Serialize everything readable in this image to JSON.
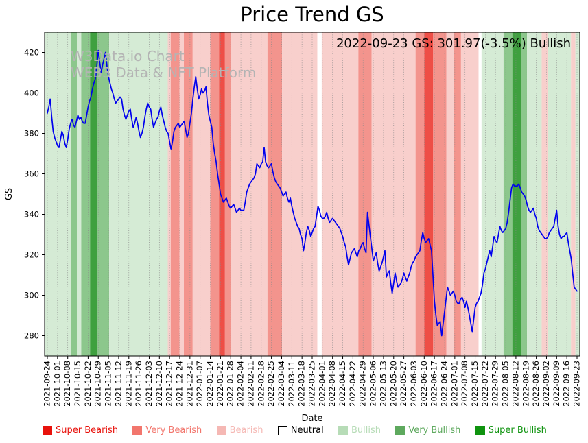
{
  "title": "Price Trend GS",
  "annotation": "2022-09-23 GS: 301.97(-3.5%) Bullish",
  "watermark": {
    "line1": "W3Data.io Chart",
    "line2": "WEB3 Data & NFT Platform"
  },
  "chart_data": {
    "type": "line",
    "title": "Price Trend GS",
    "xlabel": "Date",
    "ylabel": "GS",
    "ylim": [
      270,
      430
    ],
    "yticks": [
      280,
      300,
      320,
      340,
      360,
      380,
      400,
      420
    ],
    "grid": "vertical-dotted",
    "legend_position": "bottom",
    "x_range": [
      "2021-09-24",
      "2022-09-23"
    ],
    "frequency": "daily",
    "x_tick_labels": [
      "2021-09-24",
      "2021-10-01",
      "2021-10-08",
      "2021-10-15",
      "2021-10-22",
      "2021-10-29",
      "2021-11-05",
      "2021-11-12",
      "2021-11-19",
      "2021-11-26",
      "2021-12-03",
      "2021-12-10",
      "2021-12-17",
      "2021-12-24",
      "2021-12-31",
      "2022-01-07",
      "2022-01-14",
      "2022-01-21",
      "2022-01-28",
      "2022-02-04",
      "2022-02-11",
      "2022-02-18",
      "2022-02-25",
      "2022-03-04",
      "2022-03-11",
      "2022-03-18",
      "2022-03-25",
      "2022-04-01",
      "2022-04-08",
      "2022-04-15",
      "2022-04-22",
      "2022-04-29",
      "2022-05-06",
      "2022-05-13",
      "2022-05-20",
      "2022-05-27",
      "2022-06-03",
      "2022-06-10",
      "2022-06-17",
      "2022-06-24",
      "2022-07-01",
      "2022-07-08",
      "2022-07-15",
      "2022-07-22",
      "2022-07-29",
      "2022-08-05",
      "2022-08-12",
      "2022-08-19",
      "2022-08-26",
      "2022-09-02",
      "2022-09-09",
      "2022-09-16",
      "2022-09-23"
    ],
    "series": [
      {
        "name": "GS",
        "color": "#0000ee",
        "values": [
          390,
          393,
          397,
          388,
          381,
          378,
          376,
          374,
          373,
          377,
          381,
          379,
          375,
          373,
          377,
          382,
          385,
          387,
          384,
          383,
          386,
          389,
          387,
          388,
          386,
          385,
          385,
          389,
          393,
          396,
          398,
          402,
          405,
          407,
          413,
          421,
          415,
          410,
          414,
          417,
          420,
          413,
          408,
          405,
          402,
          400,
          397,
          395,
          396,
          397,
          398,
          397,
          392,
          389,
          387,
          389,
          391,
          392,
          387,
          383,
          385,
          388,
          385,
          381,
          378,
          380,
          383,
          388,
          392,
          395,
          393,
          392,
          387,
          383,
          385,
          387,
          388,
          391,
          393,
          389,
          386,
          383,
          381,
          380,
          376,
          372,
          376,
          381,
          383,
          384,
          385,
          383,
          384,
          385,
          386,
          382,
          378,
          380,
          385,
          390,
          397,
          403,
          408,
          402,
          397,
          399,
          402,
          400,
          401,
          403,
          395,
          389,
          386,
          383,
          375,
          370,
          366,
          360,
          355,
          350,
          348,
          346,
          347,
          348,
          346,
          344,
          343,
          344,
          345,
          343,
          341,
          342,
          343,
          342,
          342,
          342,
          346,
          351,
          353,
          355,
          356,
          357,
          358,
          360,
          365,
          364,
          363,
          365,
          366,
          373,
          366,
          364,
          363,
          364,
          365,
          361,
          358,
          356,
          355,
          354,
          353,
          351,
          349,
          350,
          351,
          348,
          346,
          348,
          344,
          341,
          338,
          336,
          334,
          333,
          330,
          328,
          322,
          326,
          331,
          334,
          332,
          329,
          331,
          333,
          334,
          339,
          344,
          342,
          339,
          338,
          338,
          339,
          341,
          338,
          336,
          337,
          338,
          337,
          336,
          335,
          334,
          333,
          331,
          329,
          326,
          324,
          319,
          315,
          318,
          321,
          322,
          323,
          321,
          319,
          322,
          323,
          325,
          326,
          323,
          321,
          341,
          335,
          329,
          323,
          317,
          319,
          321,
          316,
          312,
          314,
          316,
          319,
          322,
          309,
          311,
          312,
          306,
          301,
          306,
          311,
          307,
          304,
          305,
          306,
          308,
          311,
          309,
          307,
          309,
          311,
          314,
          316,
          317,
          319,
          320,
          321,
          322,
          327,
          331,
          328,
          326,
          327,
          328,
          325,
          322,
          310,
          297,
          290,
          285,
          286,
          287,
          280,
          286,
          292,
          298,
          304,
          302,
          300,
          301,
          302,
          300,
          297,
          296,
          296,
          298,
          299,
          297,
          294,
          297,
          294,
          290,
          286,
          282,
          288,
          294,
          296,
          297,
          299,
          301,
          305,
          311,
          313,
          316,
          319,
          322,
          319,
          324,
          329,
          327,
          326,
          330,
          334,
          332,
          331,
          332,
          333,
          336,
          341,
          347,
          353,
          355,
          354,
          354,
          354,
          355,
          353,
          351,
          350,
          349,
          347,
          344,
          342,
          341,
          342,
          343,
          340,
          338,
          334,
          332,
          331,
          330,
          329,
          328,
          328,
          329,
          331,
          332,
          333,
          334,
          338,
          342,
          334,
          330,
          328,
          329,
          329,
          330,
          331,
          326,
          322,
          318,
          311,
          304,
          303,
          301.97
        ]
      }
    ],
    "band_colors": {
      "super_bearish": "#ee4e46",
      "very_bearish": "#f3948d",
      "bearish": "#f8cfcc",
      "neutral": "#ffffff",
      "bullish": "#d5ebd5",
      "very_bullish": "#8cc78c",
      "super_bullish": "#3fa03f"
    },
    "sentiment_bands": [
      {
        "class": "bullish",
        "start": 0,
        "end": 17
      },
      {
        "class": "very_bullish",
        "start": 18,
        "end": 21
      },
      {
        "class": "bullish",
        "start": 22,
        "end": 24
      },
      {
        "class": "very_bullish",
        "start": 25,
        "end": 30
      },
      {
        "class": "super_bullish",
        "start": 31,
        "end": 35
      },
      {
        "class": "very_bullish",
        "start": 36,
        "end": 43
      },
      {
        "class": "bullish",
        "start": 44,
        "end": 83
      },
      {
        "class": "bearish",
        "start": 84,
        "end": 85
      },
      {
        "class": "very_bearish",
        "start": 86,
        "end": 91
      },
      {
        "class": "bearish",
        "start": 92,
        "end": 94
      },
      {
        "class": "very_bearish",
        "start": 95,
        "end": 100
      },
      {
        "class": "bearish",
        "start": 101,
        "end": 112
      },
      {
        "class": "very_bearish",
        "start": 113,
        "end": 118
      },
      {
        "class": "super_bearish",
        "start": 119,
        "end": 122
      },
      {
        "class": "very_bearish",
        "start": 123,
        "end": 126
      },
      {
        "class": "bearish",
        "start": 127,
        "end": 151
      },
      {
        "class": "very_bearish",
        "start": 152,
        "end": 161
      },
      {
        "class": "bearish",
        "start": 162,
        "end": 185
      },
      {
        "class": "neutral",
        "start": 186,
        "end": 188
      },
      {
        "class": "bearish",
        "start": 189,
        "end": 213
      },
      {
        "class": "very_bearish",
        "start": 214,
        "end": 222
      },
      {
        "class": "bearish",
        "start": 223,
        "end": 252
      },
      {
        "class": "very_bearish",
        "start": 253,
        "end": 258
      },
      {
        "class": "super_bearish",
        "start": 259,
        "end": 264
      },
      {
        "class": "very_bearish",
        "start": 265,
        "end": 273
      },
      {
        "class": "bearish",
        "start": 274,
        "end": 278
      },
      {
        "class": "very_bearish",
        "start": 279,
        "end": 283
      },
      {
        "class": "bearish",
        "start": 284,
        "end": 295
      },
      {
        "class": "neutral",
        "start": 296,
        "end": 297
      },
      {
        "class": "bullish",
        "start": 298,
        "end": 312
      },
      {
        "class": "very_bullish",
        "start": 313,
        "end": 318
      },
      {
        "class": "super_bullish",
        "start": 319,
        "end": 324
      },
      {
        "class": "very_bullish",
        "start": 325,
        "end": 328
      },
      {
        "class": "bullish",
        "start": 329,
        "end": 338
      },
      {
        "class": "bearish",
        "start": 339,
        "end": 342
      },
      {
        "class": "bullish",
        "start": 343,
        "end": 358
      },
      {
        "class": "bearish",
        "start": 359,
        "end": 361
      },
      {
        "class": "bullish",
        "start": 362,
        "end": 364
      }
    ],
    "legend": [
      {
        "label": "Super Bearish",
        "color": "#e8120c",
        "text_color": "#e8120c",
        "border": "#e8120c"
      },
      {
        "label": "Very Bearish",
        "color": "#f2766d",
        "text_color": "#f2766d",
        "border": "#f2766d"
      },
      {
        "label": "Bearish",
        "color": "#f5b8b4",
        "text_color": "#f5b8b4",
        "border": "#f5b8b4"
      },
      {
        "label": "Neutral",
        "color": "#ffffff",
        "text_color": "#000000",
        "border": "#000000"
      },
      {
        "label": "Bullish",
        "color": "#b7dcb7",
        "text_color": "#b7dcb7",
        "border": "#b7dcb7"
      },
      {
        "label": "Very Bullish",
        "color": "#5ea95e",
        "text_color": "#5ea95e",
        "border": "#5ea95e"
      },
      {
        "label": "Super Bullish",
        "color": "#0f930f",
        "text_color": "#0f930f",
        "border": "#0f930f"
      }
    ]
  }
}
